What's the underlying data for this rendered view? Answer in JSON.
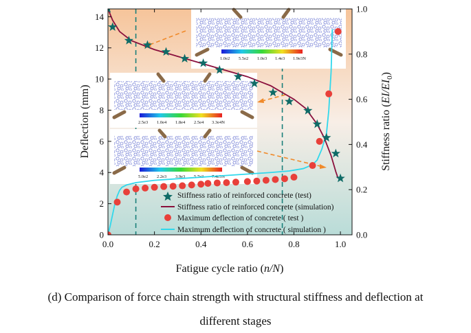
{
  "chart_data": {
    "type": "line",
    "xlabel": "Fatigue cycle ratio (",
    "xlabel_var": "n/N",
    "xlabel_end": ")",
    "ylabel_left": "Deflection (mm)",
    "ylabel_right": "Stiffness ratio (",
    "ylabel_right_var": "EI/EI",
    "ylabel_right_sub": "0",
    "ylabel_right_end": ")",
    "xlim": [
      0,
      1.05
    ],
    "ylim_left": [
      0,
      14.5
    ],
    "ylim_right": [
      0,
      1.0
    ],
    "x_ticks": [
      "0.0",
      "0.2",
      "0.4",
      "0.6",
      "0.8",
      "1.0"
    ],
    "x_tick_values": [
      0,
      0.2,
      0.4,
      0.6,
      0.8,
      1.0
    ],
    "y_left_ticks": [
      "0",
      "2",
      "4",
      "6",
      "8",
      "10",
      "12",
      "14"
    ],
    "y_left_tick_values": [
      0,
      2,
      4,
      6,
      8,
      10,
      12,
      14
    ],
    "y_right_ticks": [
      "0.0",
      "0.2",
      "0.4",
      "0.6",
      "0.8",
      "1.0"
    ],
    "y_right_tick_values": [
      0,
      0.2,
      0.4,
      0.6,
      0.8,
      1.0
    ],
    "stage_lines_x": [
      0.12,
      0.75
    ],
    "background_gradient": [
      "#f6c49a",
      "#f8eee6",
      "#b9dcd8"
    ],
    "series": [
      {
        "name": "Stiffness ratio of reinforced concrete (test)",
        "axis": "right",
        "marker": "star",
        "color": "#0f6b67",
        "x": [
          0.0,
          0.02,
          0.09,
          0.17,
          0.25,
          0.33,
          0.41,
          0.48,
          0.56,
          0.63,
          0.71,
          0.78,
          0.86,
          0.9,
          0.94,
          0.98,
          1.0
        ],
        "y": [
          1.0,
          0.92,
          0.86,
          0.84,
          0.81,
          0.78,
          0.76,
          0.73,
          0.7,
          0.67,
          0.63,
          0.59,
          0.55,
          0.49,
          0.43,
          0.36,
          0.25
        ]
      },
      {
        "name": "Stiffness ratio of reinforced concrete (simulation)",
        "axis": "right",
        "line": "solid",
        "color": "#8a0f3c",
        "x": [
          0.0,
          0.02,
          0.05,
          0.1,
          0.2,
          0.3,
          0.4,
          0.5,
          0.6,
          0.7,
          0.75,
          0.8,
          0.85,
          0.9,
          0.93,
          0.96,
          0.98,
          0.99
        ],
        "y": [
          1.0,
          0.95,
          0.9,
          0.86,
          0.82,
          0.79,
          0.76,
          0.73,
          0.7,
          0.66,
          0.63,
          0.6,
          0.56,
          0.49,
          0.43,
          0.35,
          0.28,
          0.25
        ]
      },
      {
        "name": "Maximum deflection of concrete ( test )",
        "axis": "left",
        "marker": "circle",
        "color": "#e8403a",
        "x": [
          0.0,
          0.04,
          0.08,
          0.12,
          0.16,
          0.2,
          0.24,
          0.28,
          0.32,
          0.36,
          0.4,
          0.43,
          0.47,
          0.51,
          0.55,
          0.6,
          0.64,
          0.68,
          0.72,
          0.76,
          0.8,
          0.88,
          0.91,
          0.95,
          0.99
        ],
        "y": [
          0.0,
          2.1,
          2.75,
          2.95,
          3.0,
          3.05,
          3.1,
          3.12,
          3.15,
          3.2,
          3.25,
          3.3,
          3.33,
          3.35,
          3.38,
          3.42,
          3.45,
          3.5,
          3.55,
          3.6,
          3.7,
          4.45,
          6.0,
          9.05,
          13.05
        ]
      },
      {
        "name": "Maximum deflection of concrete ( simulation )",
        "axis": "left",
        "line": "solid",
        "color": "#30d8ec",
        "x": [
          0.0,
          0.01,
          0.02,
          0.03,
          0.04,
          0.05,
          0.06,
          0.08,
          0.12,
          0.2,
          0.3,
          0.4,
          0.5,
          0.6,
          0.7,
          0.78,
          0.84,
          0.88,
          0.9,
          0.92,
          0.94,
          0.95,
          0.96,
          0.965
        ],
        "y": [
          0.0,
          0.6,
          1.3,
          2.0,
          2.5,
          2.85,
          3.05,
          3.2,
          3.35,
          3.5,
          3.6,
          3.7,
          3.8,
          3.9,
          4.0,
          4.1,
          4.25,
          4.5,
          4.8,
          5.5,
          6.5,
          8.0,
          10.5,
          13.2
        ]
      }
    ],
    "colorbars": [
      {
        "labels": [
          "1.0e2",
          "5.5e2",
          "1.0e3",
          "1.4e3",
          "1.9e3N"
        ]
      },
      {
        "labels": [
          "2.5e3",
          "1.0e4",
          "1.8e4",
          "2.5e4",
          "3.3e4N"
        ]
      },
      {
        "labels": [
          "5.0e2",
          "2.2e3",
          "3.9e3",
          "5.7e3",
          "7.4e3N"
        ]
      }
    ]
  },
  "caption": {
    "line1": "(d) Comparison of force chain strength with structural stiffness and deflection at",
    "line2": "different stages"
  }
}
